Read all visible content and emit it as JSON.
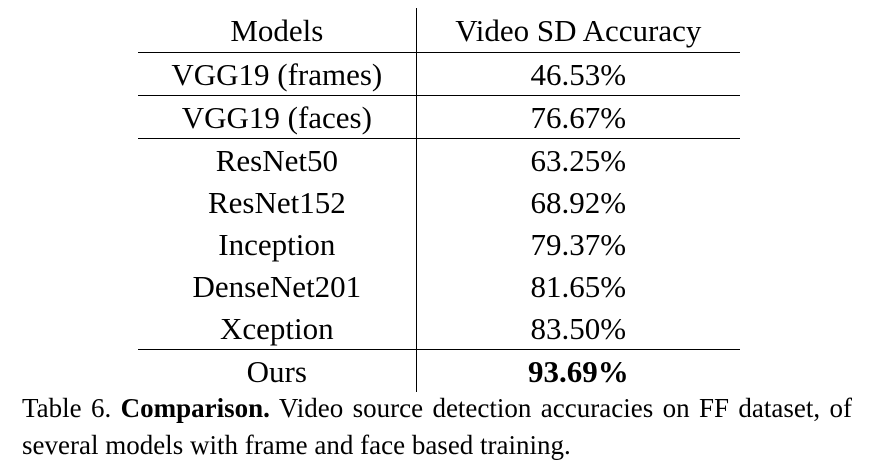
{
  "table": {
    "headers": [
      "Models",
      "Video SD Accuracy"
    ],
    "rows": [
      {
        "model": "VGG19 (frames)",
        "accuracy": "46.53%"
      },
      {
        "model": "VGG19 (faces)",
        "accuracy": "76.67%"
      },
      {
        "model": "ResNet50",
        "accuracy": "63.25%"
      },
      {
        "model": "ResNet152",
        "accuracy": "68.92%"
      },
      {
        "model": "Inception",
        "accuracy": "79.37%"
      },
      {
        "model": "DenseNet201",
        "accuracy": "81.65%"
      },
      {
        "model": "Xception",
        "accuracy": "83.50%"
      },
      {
        "model": "Ours",
        "accuracy": "93.69%"
      }
    ]
  },
  "caption": {
    "label": "Table 6.",
    "title": "Comparison.",
    "text": "Video source detection accuracies on FF dataset, of several models with frame and face based training."
  }
}
